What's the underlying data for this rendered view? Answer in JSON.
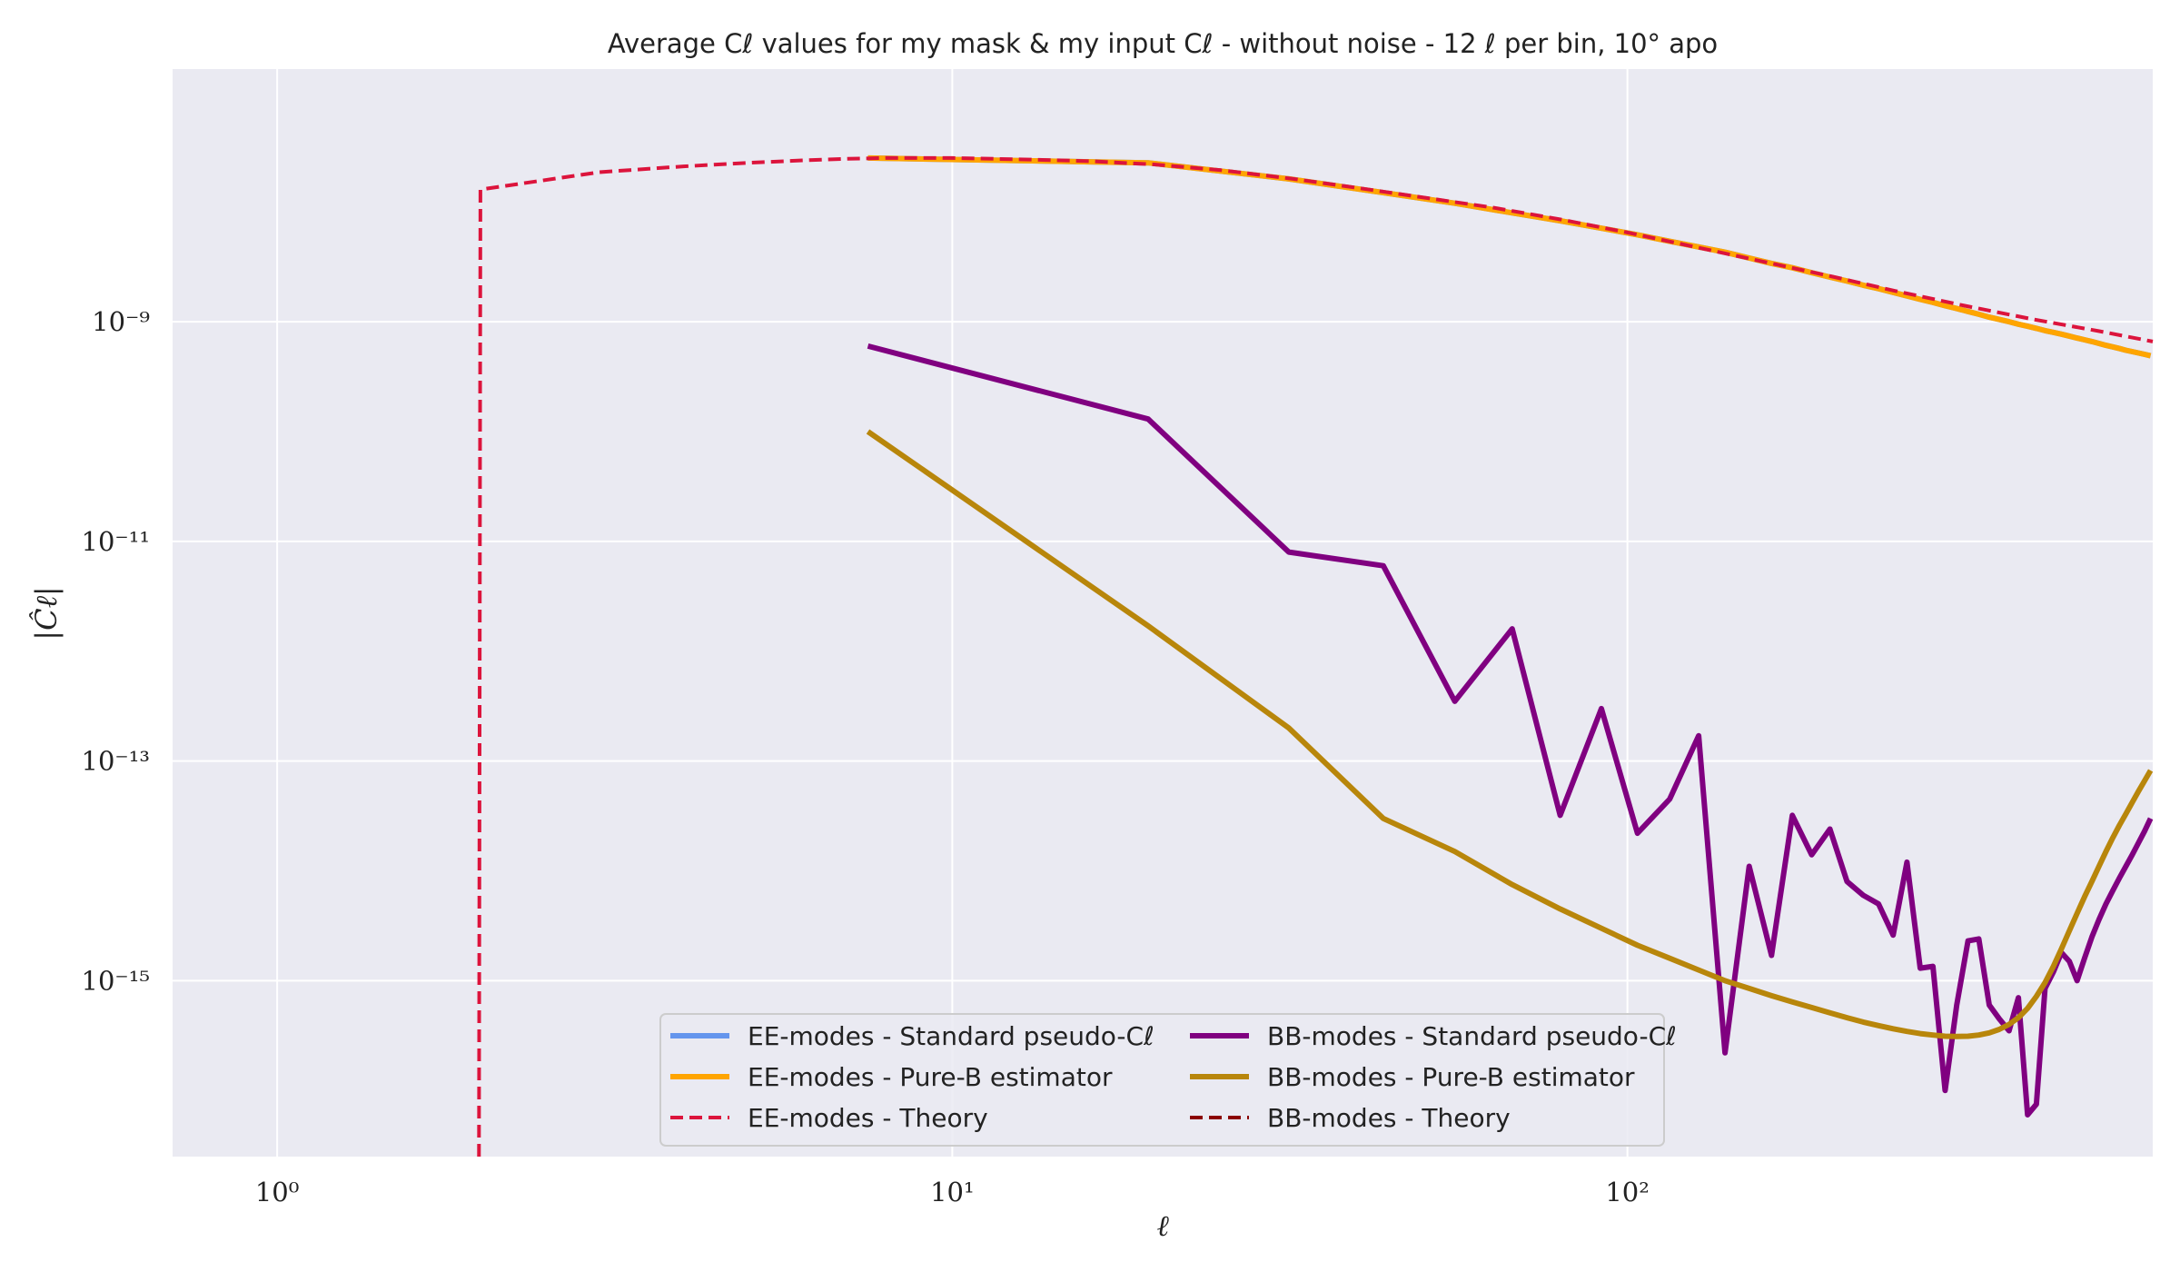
{
  "chart_data": {
    "type": "line",
    "title": "Average Cℓ values for my mask & my input Cℓ - without noise - 12 ℓ per bin, 10° apo",
    "xlabel": "ℓ",
    "ylabel": "|Ĉℓ|",
    "xscale": "log",
    "yscale": "log",
    "xlim": [
      0.7,
      600
    ],
    "ylim": [
      2.5e-17,
      2e-07
    ],
    "grid": true,
    "legend_position": "lower-center",
    "legend_columns": 2,
    "x_ticks": [
      {
        "value": 1,
        "label": "10⁰"
      },
      {
        "value": 10,
        "label": "10¹"
      },
      {
        "value": 100,
        "label": "10²"
      }
    ],
    "y_ticks": [
      {
        "value": 1e-09,
        "label": "10⁻⁹"
      },
      {
        "value": 1e-11,
        "label": "10⁻¹¹"
      },
      {
        "value": 1e-13,
        "label": "10⁻¹³"
      },
      {
        "value": 1e-15,
        "label": "10⁻¹⁵"
      }
    ],
    "series": [
      {
        "name": "EE-modes - Standard pseudo-Cℓ",
        "color": "#6495ed",
        "style": "solid",
        "width": 6,
        "x": [
          7.5,
          19.5,
          31.5,
          43.5,
          55.5,
          67.5,
          79.5,
          91.5,
          103.5,
          115.5,
          127.5,
          139.5,
          151.5,
          163.5,
          175.5,
          187.5,
          199.5,
          211.5,
          223.5,
          235.5,
          247.5,
          259.5,
          271.5,
          283.5,
          295.5,
          307.5,
          319.5,
          331.5,
          343.5,
          355.5,
          367.5,
          379.5,
          391.5,
          403.5,
          415.5,
          427.5,
          439.5,
          451.5,
          463.5,
          475.5,
          487.5,
          499.5,
          511.5,
          523.5,
          535.5,
          547.5,
          559.5,
          571.5,
          583.5,
          595.5
        ],
        "y": [
          3.1e-08,
          2.8e-08,
          2e-08,
          1.5e-08,
          1.2e-08,
          9.8e-09,
          8.3e-09,
          7.1e-09,
          6.2e-09,
          5.4e-09,
          4.8e-09,
          4.3e-09,
          3.8e-09,
          3.4e-09,
          3.1e-09,
          2.8e-09,
          2.55e-09,
          2.35e-09,
          2.15e-09,
          2e-09,
          1.85e-09,
          1.72e-09,
          1.6e-09,
          1.5e-09,
          1.4e-09,
          1.32e-09,
          1.24e-09,
          1.17e-09,
          1.1e-09,
          1.05e-09,
          1e-09,
          9.5e-10,
          9.1e-10,
          8.7e-10,
          8.3e-10,
          8e-10,
          7.7e-10,
          7.4e-10,
          7.1e-10,
          6.85e-10,
          6.6e-10,
          6.35e-10,
          6.1e-10,
          5.9e-10,
          5.7e-10,
          5.5e-10,
          5.35e-10,
          5.2e-10,
          5.05e-10,
          4.9e-10
        ]
      },
      {
        "name": "EE-modes - Pure-B estimator",
        "color": "#ffa500",
        "style": "solid",
        "width": 6,
        "x": [
          7.5,
          19.5,
          31.5,
          43.5,
          55.5,
          67.5,
          79.5,
          91.5,
          103.5,
          115.5,
          127.5,
          139.5,
          151.5,
          163.5,
          175.5,
          187.5,
          199.5,
          211.5,
          223.5,
          235.5,
          247.5,
          259.5,
          271.5,
          283.5,
          295.5,
          307.5,
          319.5,
          331.5,
          343.5,
          355.5,
          367.5,
          379.5,
          391.5,
          403.5,
          415.5,
          427.5,
          439.5,
          451.5,
          463.5,
          475.5,
          487.5,
          499.5,
          511.5,
          523.5,
          535.5,
          547.5,
          559.5,
          571.5,
          583.5,
          595.5
        ],
        "y": [
          3.1e-08,
          2.8e-08,
          2e-08,
          1.5e-08,
          1.2e-08,
          9.8e-09,
          8.3e-09,
          7.1e-09,
          6.2e-09,
          5.4e-09,
          4.8e-09,
          4.3e-09,
          3.8e-09,
          3.4e-09,
          3.1e-09,
          2.8e-09,
          2.55e-09,
          2.35e-09,
          2.15e-09,
          2e-09,
          1.85e-09,
          1.72e-09,
          1.6e-09,
          1.5e-09,
          1.4e-09,
          1.32e-09,
          1.24e-09,
          1.17e-09,
          1.1e-09,
          1.05e-09,
          1e-09,
          9.5e-10,
          9.1e-10,
          8.7e-10,
          8.3e-10,
          8e-10,
          7.7e-10,
          7.4e-10,
          7.1e-10,
          6.85e-10,
          6.6e-10,
          6.35e-10,
          6.1e-10,
          5.9e-10,
          5.7e-10,
          5.5e-10,
          5.35e-10,
          5.2e-10,
          5.05e-10,
          4.9e-10
        ]
      },
      {
        "name": "EE-modes - Theory",
        "color": "#dc143c",
        "style": "dashed",
        "width": 4,
        "x": [
          1.99,
          2,
          3,
          4,
          5,
          6,
          7,
          8,
          10,
          13,
          16,
          20,
          25,
          32,
          40,
          50,
          63,
          80,
          100,
          126,
          160,
          200,
          250,
          316,
          400,
          500,
          600
        ],
        "y": [
          1e-20,
          1.6e-08,
          2.3e-08,
          2.6e-08,
          2.8e-08,
          2.95e-08,
          3.05e-08,
          3.1e-08,
          3.1e-08,
          3e-08,
          2.9e-08,
          2.7e-08,
          2.4e-08,
          2e-08,
          1.65e-08,
          1.35e-08,
          1.1e-08,
          8.5e-09,
          6.5e-09,
          4.8e-09,
          3.5e-09,
          2.6e-09,
          1.9e-09,
          1.4e-09,
          1.05e-09,
          8.2e-10,
          6.6e-10
        ]
      },
      {
        "name": "BB-modes - Standard pseudo-Cℓ",
        "color": "#800080",
        "style": "solid",
        "width": 6,
        "x": [
          7.5,
          19.5,
          31.5,
          43.5,
          55.5,
          67.5,
          79.5,
          91.5,
          103.5,
          115.5,
          127.5,
          139.5,
          151.5,
          163.5,
          175.5,
          187.5,
          199.5,
          211.5,
          223.5,
          235.5,
          247.5,
          259.5,
          271.5,
          283.5,
          295.5,
          307.5,
          319.5,
          331.5,
          343.5,
          355.5,
          367.5,
          379.5,
          391.5,
          403.5,
          415.5,
          427.5,
          439.5,
          451.5,
          463.5,
          475.5,
          487.5,
          499.5,
          511.5,
          523.5,
          535.5,
          547.5,
          559.5,
          571.5,
          583.5,
          595.5
        ],
        "y": [
          6e-10,
          1.3e-10,
          8e-12,
          6e-12,
          3.5e-13,
          1.6e-12,
          3.2e-14,
          3e-13,
          2.2e-14,
          4.5e-14,
          1.7e-13,
          2.2e-16,
          1.1e-14,
          1.7e-15,
          3.2e-14,
          1.4e-14,
          2.4e-14,
          8e-15,
          6e-15,
          5e-15,
          2.6e-15,
          1.2e-14,
          1.3e-15,
          1.35e-15,
          1e-16,
          6e-16,
          2.3e-15,
          2.4e-15,
          6e-16,
          4.5e-16,
          3.5e-16,
          7e-16,
          6e-17,
          7.5e-17,
          8.5e-16,
          1.2e-15,
          1.8e-15,
          1.5e-15,
          1e-15,
          1.6e-15,
          2.5e-15,
          3.6e-15,
          5e-15,
          6.6e-15,
          8.6e-15,
          1.1e-14,
          1.4e-14,
          1.8e-14,
          2.3e-14,
          3e-14
        ]
      },
      {
        "name": "BB-modes - Pure-B estimator",
        "color": "#b8860b",
        "style": "solid",
        "width": 6,
        "x": [
          7.5,
          19.5,
          31.5,
          43.5,
          55.5,
          67.5,
          79.5,
          91.5,
          103.5,
          115.5,
          127.5,
          139.5,
          151.5,
          163.5,
          175.5,
          187.5,
          199.5,
          211.5,
          223.5,
          235.5,
          247.5,
          259.5,
          271.5,
          283.5,
          295.5,
          307.5,
          319.5,
          331.5,
          343.5,
          355.5,
          367.5,
          379.5,
          391.5,
          403.5,
          415.5,
          427.5,
          439.5,
          451.5,
          463.5,
          475.5,
          487.5,
          499.5,
          511.5,
          523.5,
          535.5,
          547.5,
          559.5,
          571.5,
          583.5,
          595.5
        ],
        "y": [
          1e-10,
          1.7e-12,
          2e-13,
          3e-14,
          1.5e-14,
          7.5e-15,
          4.5e-15,
          3e-15,
          2.1e-15,
          1.6e-15,
          1.25e-15,
          1e-15,
          8.5e-16,
          7.3e-16,
          6.4e-16,
          5.7e-16,
          5.1e-16,
          4.6e-16,
          4.2e-16,
          3.9e-16,
          3.65e-16,
          3.45e-16,
          3.3e-16,
          3.2e-16,
          3.12e-16,
          3.1e-16,
          3.12e-16,
          3.2e-16,
          3.35e-16,
          3.6e-16,
          4e-16,
          4.6e-16,
          5.6e-16,
          7.2e-16,
          9.6e-16,
          1.35e-15,
          1.95e-15,
          2.85e-15,
          4.1e-15,
          5.8e-15,
          8e-15,
          1.1e-14,
          1.5e-14,
          2e-14,
          2.6e-14,
          3.3e-14,
          4.2e-14,
          5.3e-14,
          6.6e-14,
          8.2e-14
        ]
      },
      {
        "name": "BB-modes - Theory",
        "color": "#8b0000",
        "style": "dashed",
        "width": 4,
        "x": [],
        "y": []
      }
    ]
  }
}
